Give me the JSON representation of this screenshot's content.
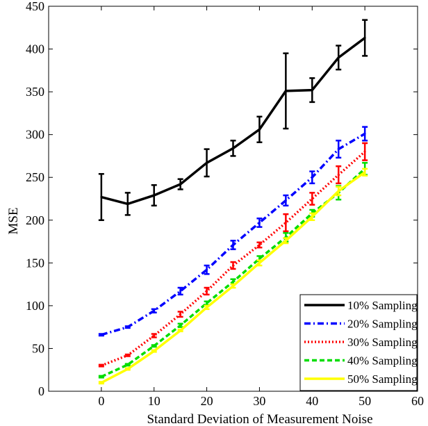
{
  "chart_data": {
    "type": "line",
    "xlabel": "Standard Deviation of Measurement Noise",
    "ylabel": "MSE",
    "xlim": [
      -10,
      60
    ],
    "ylim": [
      0,
      450
    ],
    "x_ticks": [
      0,
      10,
      20,
      30,
      40,
      50,
      60
    ],
    "y_ticks": [
      0,
      50,
      100,
      150,
      200,
      250,
      300,
      350,
      400,
      450
    ],
    "grid": false,
    "legend_position": "bottom-right",
    "x": [
      0,
      5,
      10,
      15,
      20,
      25,
      30,
      35,
      40,
      45,
      50
    ],
    "series": [
      {
        "name": "10% Sampling",
        "color": "#000000",
        "style": "solid",
        "values": [
          227,
          219,
          229,
          242,
          267,
          284,
          306,
          351,
          352,
          390,
          413
        ],
        "errors": [
          27,
          13,
          12,
          6,
          16,
          9,
          15,
          44,
          14,
          14,
          21
        ]
      },
      {
        "name": "20% Sampling",
        "color": "#0000ff",
        "style": "dashdot",
        "values": [
          66,
          75,
          94,
          117,
          142,
          171,
          197,
          223,
          250,
          283,
          301
        ],
        "errors": [
          1,
          1,
          2,
          4,
          5,
          5,
          5,
          6,
          7,
          10,
          8
        ]
      },
      {
        "name": "30% Sampling",
        "color": "#ff0000",
        "style": "dotted",
        "values": [
          30,
          42,
          65,
          90,
          117,
          147,
          171,
          197,
          225,
          253,
          280
        ],
        "errors": [
          1,
          1,
          2,
          3,
          4,
          4,
          3,
          10,
          7,
          10,
          10
        ]
      },
      {
        "name": "40% Sampling",
        "color": "#00dd00",
        "style": "dashed",
        "values": [
          17,
          31,
          53,
          77,
          103,
          128,
          155,
          180,
          208,
          232,
          260
        ],
        "errors": [
          1,
          1,
          1,
          2,
          2,
          3,
          3,
          5,
          4,
          8,
          7
        ]
      },
      {
        "name": "50% Sampling",
        "color": "#ffff00",
        "style": "solid",
        "values": [
          10,
          26,
          47,
          71,
          98,
          123,
          150,
          176,
          204,
          234,
          256
        ],
        "errors": [
          1,
          1,
          1,
          1,
          2,
          2,
          3,
          3,
          4,
          5,
          4
        ]
      }
    ]
  }
}
